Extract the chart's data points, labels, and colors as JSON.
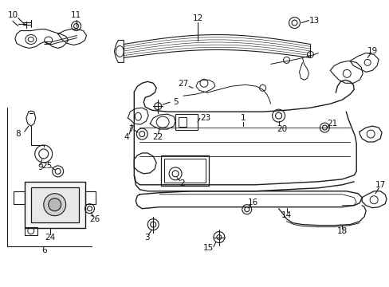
{
  "background_color": "#ffffff",
  "line_color": "#1a1a1a",
  "text_color": "#111111",
  "fig_width": 4.89,
  "fig_height": 3.6,
  "dpi": 100
}
